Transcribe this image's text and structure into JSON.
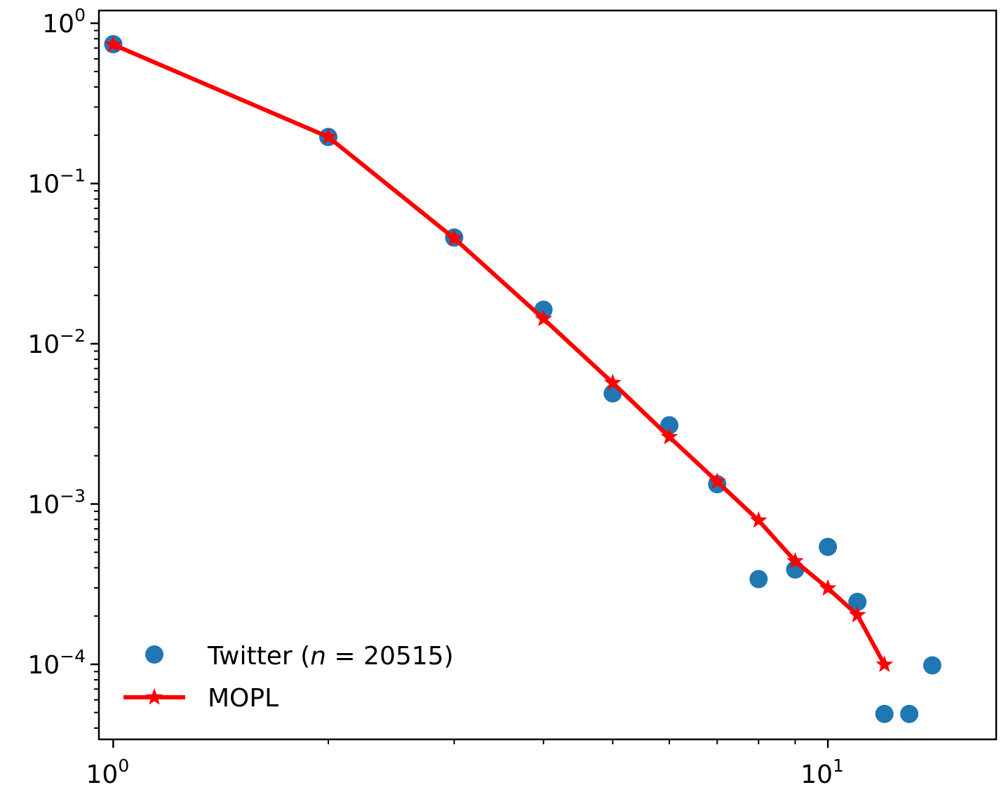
{
  "chart_data": {
    "type": "scatter",
    "x_scale": "log",
    "y_scale": "log",
    "xlim": [
      0.955,
      17.2
    ],
    "ylim": [
      3.4e-05,
      1.2
    ],
    "x_ticks": [
      {
        "value": 1,
        "base": "10",
        "exp": "0"
      },
      {
        "value": 10,
        "base": "10",
        "exp": "1"
      }
    ],
    "y_ticks": [
      {
        "value": 1,
        "base": "10",
        "exp": "0"
      },
      {
        "value": 0.1,
        "base": "10",
        "exp": "−1"
      },
      {
        "value": 0.01,
        "base": "10",
        "exp": "−2"
      },
      {
        "value": 0.001,
        "base": "10",
        "exp": "−3"
      },
      {
        "value": 0.0001,
        "base": "10",
        "exp": "−4"
      }
    ],
    "grid": false,
    "legend_position": "lower-left",
    "series": [
      {
        "name": "Twitter (n = 20515)",
        "label_prefix": "Twitter (",
        "label_var": "n",
        "label_suffix": " = 20515)",
        "kind": "scatter",
        "marker": "circle",
        "color": "#1f77b4",
        "points": [
          [
            1,
            0.74
          ],
          [
            2,
            0.195
          ],
          [
            3,
            0.046
          ],
          [
            4,
            0.0163
          ],
          [
            5,
            0.0049
          ],
          [
            6,
            0.0031
          ],
          [
            7,
            0.00133
          ],
          [
            8,
            0.00034
          ],
          [
            9,
            0.00039
          ],
          [
            10,
            0.00054
          ],
          [
            11,
            0.000245
          ],
          [
            12,
            4.9e-05
          ],
          [
            13,
            4.9e-05
          ],
          [
            14,
            9.85e-05
          ]
        ]
      },
      {
        "name": "MOPL",
        "kind": "line",
        "marker": "star",
        "color": "#ff0000",
        "points": [
          [
            1,
            0.735
          ],
          [
            2,
            0.195
          ],
          [
            3,
            0.0455
          ],
          [
            4,
            0.0143
          ],
          [
            5,
            0.0057
          ],
          [
            6,
            0.00262
          ],
          [
            7,
            0.00138
          ],
          [
            8,
            0.00079
          ],
          [
            9,
            0.00044
          ],
          [
            10,
            0.000298
          ],
          [
            11,
            0.000203
          ],
          [
            12,
            9.95e-05
          ]
        ]
      }
    ]
  }
}
